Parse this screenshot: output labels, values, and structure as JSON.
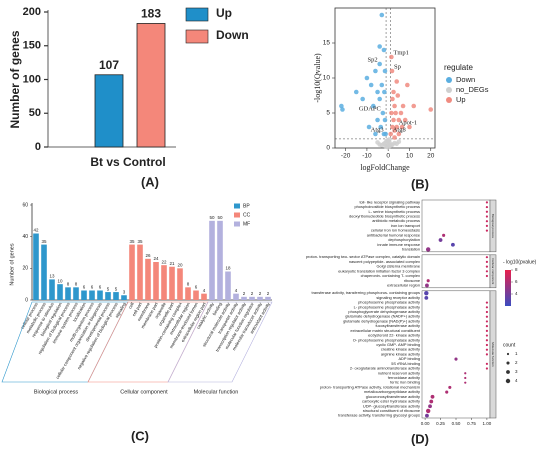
{
  "chart_data": [
    {
      "type": "bar",
      "panel": "(A)",
      "ylabel": "Number of genes",
      "categories": [
        "Bt vs Control"
      ],
      "series": [
        {
          "name": "Up",
          "color": "#1f8fc9",
          "values": [
            107
          ]
        },
        {
          "name": "Down",
          "color": "#f4877a",
          "values": [
            183
          ]
        }
      ],
      "ylim": [
        0,
        200
      ],
      "yticks": [
        0,
        50,
        100,
        150,
        200
      ]
    },
    {
      "type": "scatter",
      "panel": "(B)",
      "xlabel": "logFoldChange",
      "ylabel": "-log10(Qvalue)",
      "legend_title": "regulate",
      "series": [
        {
          "name": "Down",
          "color": "#5aaee0",
          "x": [
            -22,
            -21.5,
            -15,
            -12,
            -10,
            -8,
            -7,
            -6,
            -5,
            -5,
            -4,
            -4,
            -3,
            -3.5,
            -3,
            -2.5,
            -2,
            -2,
            -1.8,
            -1.5,
            -1.5,
            -1.2,
            -6,
            -9,
            -4
          ],
          "values": [
            6,
            5.5,
            8,
            7,
            10,
            9,
            6,
            11,
            8,
            4,
            12,
            7,
            19,
            3,
            9,
            5,
            14,
            2,
            8,
            4,
            11,
            2,
            2,
            3,
            14.5
          ]
        },
        {
          "name": "no_DEGs",
          "color": "#cfcfcf",
          "x": [
            -0.5,
            0.3,
            -0.8,
            0.6,
            -2,
            2,
            -3,
            3,
            -1,
            1,
            -4,
            4,
            0,
            -0.3,
            0.5,
            -5,
            5,
            -1.5,
            1.5,
            -0.2
          ],
          "values": [
            0.3,
            0.5,
            1,
            0.8,
            0.6,
            0.5,
            0.4,
            0.7,
            0.2,
            0.3,
            0.5,
            0.6,
            0.9,
            1.1,
            1.2,
            0.8,
            0.9,
            0.7,
            0.4,
            0.1
          ]
        },
        {
          "name": "Up",
          "color": "#f08b80",
          "x": [
            1.2,
            1.5,
            2,
            2,
            2.5,
            3,
            3,
            3.5,
            4,
            4.5,
            5,
            5,
            6,
            6.5,
            7,
            8,
            9,
            10,
            20,
            1.5,
            2.5,
            1.8,
            4,
            12,
            3
          ],
          "values": [
            2,
            5,
            3,
            7,
            4,
            6,
            2.5,
            5,
            3,
            7.5,
            4,
            2,
            5,
            3,
            6,
            4,
            9,
            3,
            5.5,
            13,
            8,
            11,
            9.5,
            6,
            1.5
          ]
        }
      ],
      "labels": [
        {
          "text": "Tmp1",
          "x": 1.5,
          "y": 13
        },
        {
          "text": "Sp",
          "x": 1.8,
          "y": 11
        },
        {
          "text": "Sp2",
          "x": -4,
          "y": 12
        },
        {
          "text": "GDAPC",
          "x": -2.5,
          "y": 5
        },
        {
          "text": "Apot-1",
          "x": 4,
          "y": 3
        },
        {
          "text": "Atg8",
          "x": 1.2,
          "y": 2
        },
        {
          "text": "Atg3",
          "x": -1.2,
          "y": 2
        }
      ],
      "vlines": [
        -1,
        1
      ],
      "hline": 1.3,
      "xlim": [
        -25,
        22
      ],
      "xticks": [
        -20,
        -10,
        0,
        10,
        20
      ],
      "ylim": [
        0,
        20
      ],
      "yticks": [
        0,
        5,
        10,
        15
      ]
    },
    {
      "type": "gobar",
      "panel": "(C)",
      "ylabel": "Number of genes",
      "categories": [
        "cellular process",
        "metabolic process",
        "response to stimulus",
        "biological regulation",
        "regulation of biological process",
        "immune system process",
        "localization",
        "multi-organism process",
        "cellular component organization or biogenesis",
        "developmental process",
        "negative regulation of biological process",
        "signaling",
        "cell",
        "cell part",
        "membrane",
        "membrane part",
        "organelle",
        "organelle part",
        "protein-containing complex",
        "extracellular region",
        "membrane-enclosed lumen",
        "extracellular region part",
        "catalytic activity",
        "binding",
        "structural molecule activity",
        "transporter activity",
        "transcription regulator activity",
        "molecular function regulator",
        "molecular transducer activity",
        "antioxidant activity"
      ],
      "series": [
        {
          "name": "BP",
          "group": "Biological process",
          "color": "#2e97cc",
          "values": [
            42,
            35,
            13,
            10,
            8,
            8,
            6,
            6,
            6,
            5,
            5,
            3,
            null,
            null,
            null,
            null,
            null,
            null,
            null,
            null,
            null,
            null,
            null,
            null,
            null,
            null,
            null,
            null,
            null,
            null
          ]
        },
        {
          "name": "CC",
          "group": "Cellular component",
          "color": "#f4877a",
          "values": [
            null,
            null,
            null,
            null,
            null,
            null,
            null,
            null,
            null,
            null,
            null,
            null,
            35,
            35,
            26,
            24,
            22,
            21,
            20,
            8,
            6,
            4,
            null,
            null,
            null,
            null,
            null,
            null,
            null,
            null
          ]
        },
        {
          "name": "MF",
          "group": "Molecular function",
          "color": "#b3b1de",
          "values": [
            null,
            null,
            null,
            null,
            null,
            null,
            null,
            null,
            null,
            null,
            null,
            null,
            null,
            null,
            null,
            null,
            null,
            null,
            null,
            null,
            null,
            null,
            50,
            50,
            18,
            4,
            2,
            2,
            2,
            2
          ]
        }
      ],
      "ylim": [
        0,
        60
      ],
      "yticks": [
        0,
        20,
        40,
        60
      ]
    },
    {
      "type": "dotplot",
      "panel": "(D)",
      "color_title": "- log10(pvalue)",
      "size_title": "count",
      "xlim": [
        -0.05,
        1.05
      ],
      "xticks": [
        {
          "value": 0,
          "label": "0.00"
        },
        {
          "value": 0.25,
          "label": "0.25"
        },
        {
          "value": 0.5,
          "label": "0.50"
        },
        {
          "value": 0.75,
          "label": "0.75"
        },
        {
          "value": 1,
          "label": "1.00"
        }
      ],
      "colorlim": [
        2,
        8
      ],
      "colorticks": [
        4,
        6,
        8
      ],
      "sizeticks": [
        1,
        2,
        3,
        4
      ],
      "facets": [
        {
          "name": "Biological process",
          "terms": [
            "toll- like receptor signaling pathway",
            "phosphoinositide biosynthetic process",
            "L- serine biosynthetic process",
            "deoxyribonucleotide biosynthetic process",
            "antibiotic metabolic process",
            "iron ion transport",
            "cellular iron ion homeostasis",
            "antibacterial humoral response",
            "dephosphorylation",
            "innate immune response",
            "translation"
          ],
          "x": [
            1,
            1,
            1,
            1,
            1,
            1,
            1,
            0.3,
            0.25,
            0.45,
            0.05
          ],
          "count": [
            1,
            1,
            1,
            1,
            1,
            1,
            1,
            2,
            3,
            3,
            4
          ],
          "pvalue": [
            7,
            7,
            7,
            7,
            7,
            7,
            7,
            6,
            4,
            3,
            5
          ]
        },
        {
          "name": "Cellular component",
          "terms": [
            "proton- transporting two- sector ATPase complex, catalytic domain",
            "nascent polypeptide- associated complex",
            "Golgi cisterna membrane",
            "eukaryotic translation initiation factor 3 complex",
            "chaperonin- containing T- complex",
            "ribosome",
            "extracellular region"
          ],
          "x": [
            1,
            1,
            1,
            1,
            1,
            0.05,
            0.03
          ],
          "count": [
            1,
            1,
            1,
            1,
            1,
            2,
            3
          ],
          "pvalue": [
            7,
            7,
            7,
            7,
            7,
            6,
            5
          ]
        },
        {
          "name": "Molecular function",
          "terms": [
            "transferase activity, transferring phosphorus- containing groups",
            "signaling receptor activity",
            "phosphoserine phosphatase activity",
            "L- phosphoserine phosphatase activity",
            "phosphoglycerate dehydrogenase activity",
            "glutamate dehydrogenase (NADP+) activity",
            "glutamate dehydrogenase [NAD(P)+] activity",
            "fucosyltransferase activity",
            "extracellular matrix structural constituent",
            "ecdysteroid 22- kinase activity",
            "O- phosphoserine phosphatase activity",
            "cyclic GMP- AMP binding",
            "creatine kinase activity",
            "arginine kinase activity",
            "ADP binding",
            "5S rRNA binding",
            "2- oxoglutarate aminotransferase activity",
            "nutrient reservoir activity",
            "ferroxidase activity",
            "ferric iron binding",
            "proton- transporting ATPase activity, rotational mechanism",
            "metallocarboxypeptidase activity",
            "glucuronosyltransferase activity",
            "carboxylic ester hydrolase activity",
            "UDP- glucosyltransferase activity",
            "structural constituent of ribosome",
            "transferase activity, transferring glycosyl groups"
          ],
          "x": [
            0.02,
            0.02,
            1,
            1,
            1,
            1,
            1,
            1,
            1,
            1,
            1,
            1,
            1,
            1,
            0.5,
            1,
            1,
            0.65,
            0.65,
            0.65,
            0.4,
            0.35,
            0.12,
            0.1,
            0.08,
            0.05,
            0.03
          ],
          "count": [
            4,
            3,
            1,
            1,
            1,
            1,
            1,
            1,
            1,
            1,
            1,
            1,
            1,
            1,
            2,
            1,
            1,
            1,
            1,
            1,
            2,
            2,
            3,
            3,
            3,
            4,
            3
          ],
          "pvalue": [
            3,
            3,
            7,
            7,
            7,
            7,
            7,
            7,
            7,
            7,
            7,
            7,
            7,
            7,
            5,
            7,
            7,
            6,
            6,
            6,
            6,
            6,
            6,
            6,
            5,
            6,
            4
          ]
        }
      ]
    }
  ]
}
